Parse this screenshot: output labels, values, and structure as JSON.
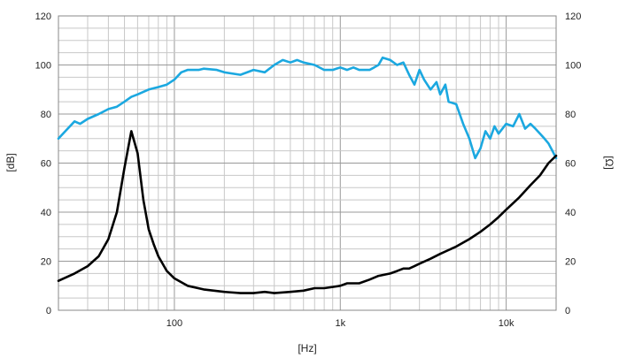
{
  "chart_data": {
    "type": "line",
    "x_scale": "log",
    "xlim": [
      20,
      20000
    ],
    "ylim": [
      0,
      120
    ],
    "y2lim": [
      0,
      120
    ],
    "grid": true,
    "xlabel": "[Hz]",
    "ylabel": "[dB]",
    "y2label": "[Ω]",
    "x_tick_labels": [
      {
        "value": 100,
        "label": "100"
      },
      {
        "value": 1000,
        "label": "1k"
      },
      {
        "value": 10000,
        "label": "10k"
      }
    ],
    "y_ticks": [
      0,
      20,
      40,
      60,
      80,
      100,
      120
    ],
    "y2_ticks": [
      0,
      20,
      40,
      60,
      80,
      100,
      120
    ],
    "series": [
      {
        "color": "#1ba8e0",
        "axis": "left",
        "x": [
          20,
          22,
          25,
          27,
          30,
          35,
          40,
          45,
          50,
          55,
          60,
          70,
          80,
          90,
          100,
          110,
          120,
          140,
          150,
          180,
          200,
          250,
          300,
          350,
          400,
          450,
          500,
          550,
          600,
          700,
          800,
          900,
          1000,
          1100,
          1200,
          1300,
          1400,
          1500,
          1600,
          1700,
          1800,
          2000,
          2200,
          2400,
          2600,
          2800,
          3000,
          3200,
          3500,
          3800,
          4000,
          4300,
          4500,
          5000,
          5500,
          6000,
          6500,
          7000,
          7500,
          8000,
          8500,
          9000,
          10000,
          11000,
          12000,
          13000,
          14000,
          15000,
          16000,
          17000,
          18000,
          19000,
          20000
        ],
        "y": [
          70,
          73,
          77,
          76,
          78,
          80,
          82,
          83,
          85,
          87,
          88,
          90,
          91,
          92,
          94,
          97,
          98,
          98,
          98.5,
          98,
          97,
          96,
          98,
          97,
          100,
          102,
          101,
          102,
          101,
          100,
          98,
          98,
          99,
          98,
          99,
          98,
          98,
          98,
          99,
          100,
          103,
          102,
          100,
          101,
          96,
          92,
          98,
          94,
          90,
          93,
          88,
          92,
          85,
          84,
          76,
          70,
          62,
          66,
          73,
          70,
          75,
          72,
          76,
          75,
          80,
          74,
          76,
          74,
          72,
          70,
          68,
          65,
          62
        ]
      },
      {
        "color": "#000000",
        "axis": "right",
        "x": [
          20,
          25,
          30,
          35,
          40,
          45,
          50,
          55,
          60,
          65,
          70,
          75,
          80,
          90,
          100,
          120,
          150,
          200,
          250,
          300,
          350,
          400,
          500,
          600,
          700,
          800,
          900,
          1000,
          1100,
          1200,
          1300,
          1500,
          1700,
          2000,
          2200,
          2400,
          2600,
          2800,
          3000,
          3500,
          4000,
          5000,
          6000,
          7000,
          8000,
          9000,
          10000,
          12000,
          14000,
          16000,
          18000,
          20000
        ],
        "y": [
          12,
          15,
          18,
          22,
          29,
          40,
          58,
          73,
          64,
          45,
          33,
          27,
          22,
          16,
          13,
          10,
          8.5,
          7.5,
          7,
          7,
          7.5,
          7,
          7.5,
          8,
          9,
          9,
          9.5,
          10,
          11,
          11,
          11,
          12.5,
          14,
          15,
          16,
          17,
          17,
          18,
          19,
          21,
          23,
          26,
          29,
          32,
          35,
          38,
          41,
          46,
          51,
          55,
          60,
          63
        ]
      }
    ]
  }
}
